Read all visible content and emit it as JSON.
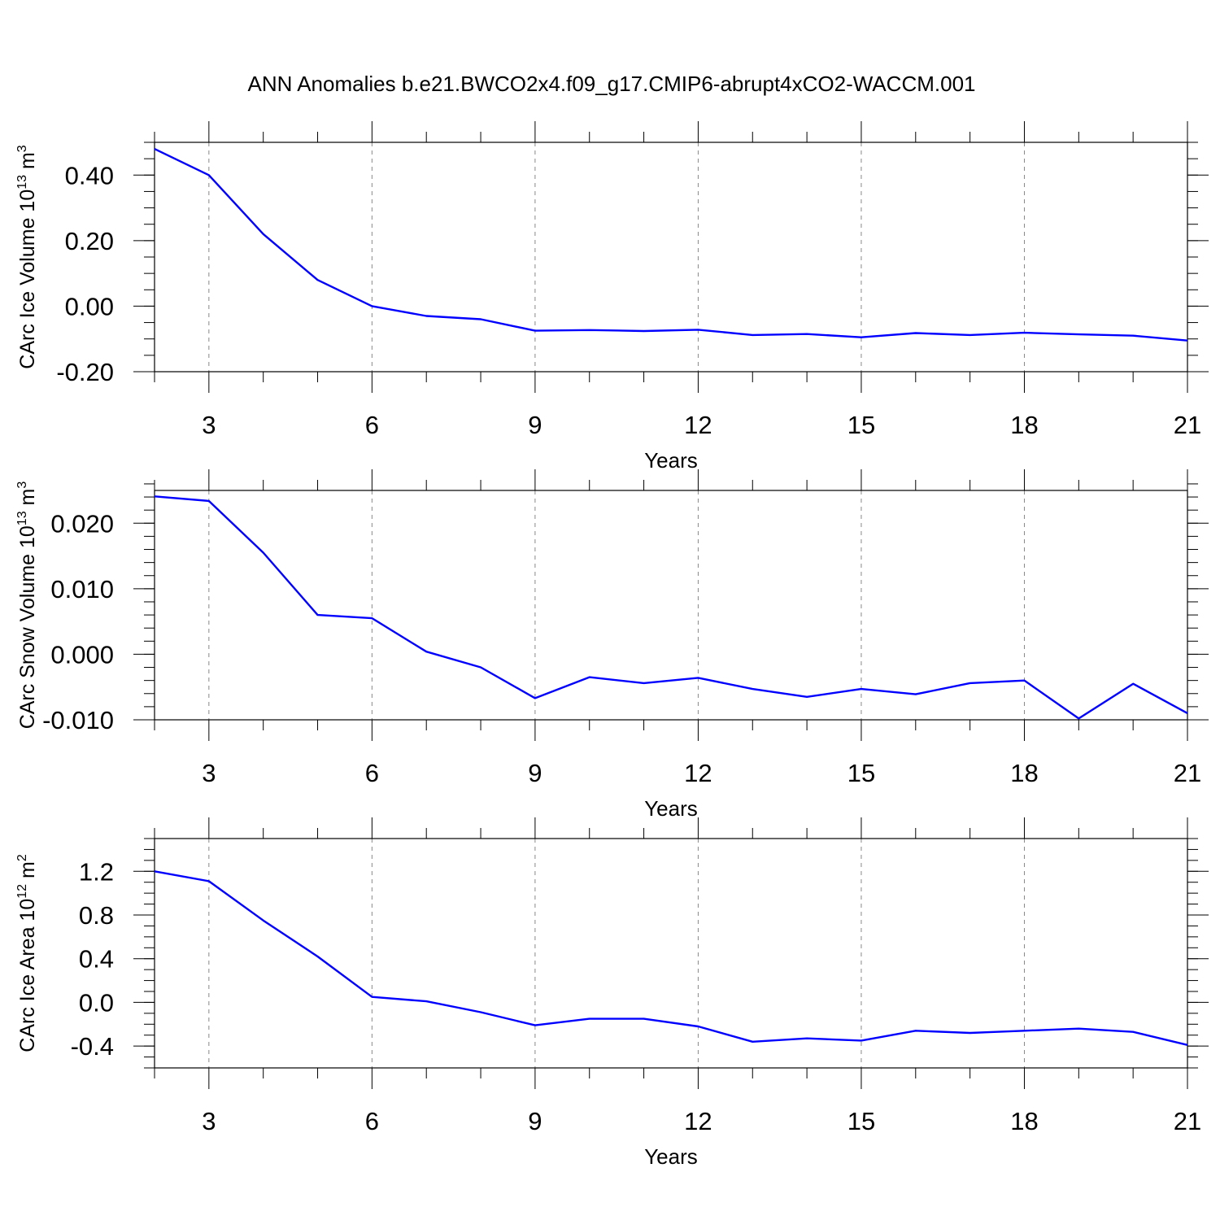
{
  "chart_data": {
    "title": "ANN Anomalies b.e21.BWCO2x4.f09_g17.CMIP6-abrupt4xCO2-WACCM.001",
    "line_color": "#0000ff",
    "panels": [
      {
        "type": "line",
        "ylabel": "CArc Ice Volume 10",
        "ylabel_sup": "13",
        "ylabel_unit": " m",
        "ylabel_unit_sup": "3",
        "xlabel": "Years",
        "xlim": [
          2,
          21
        ],
        "ylim": [
          -0.2,
          0.5
        ],
        "xticks": [
          3,
          6,
          9,
          12,
          15,
          18,
          21
        ],
        "xtick_labels": [
          "3",
          "6",
          "9",
          "12",
          "15",
          "18",
          "21"
        ],
        "yticks": [
          -0.2,
          0.0,
          0.2,
          0.4
        ],
        "ytick_labels": [
          "-0.20",
          "0.00",
          "0.20",
          "0.40"
        ],
        "y_minor_step": 0.05,
        "grid": "vertical dashed",
        "x": [
          2,
          3,
          4,
          5,
          6,
          7,
          8,
          9,
          10,
          11,
          12,
          13,
          14,
          15,
          16,
          17,
          18,
          19,
          20,
          21
        ],
        "y": [
          0.48,
          0.4,
          0.22,
          0.08,
          0.0,
          -0.03,
          -0.04,
          -0.075,
          -0.073,
          -0.076,
          -0.072,
          -0.088,
          -0.085,
          -0.095,
          -0.082,
          -0.088,
          -0.081,
          -0.086,
          -0.09,
          -0.105
        ]
      },
      {
        "type": "line",
        "ylabel": "CArc Snow Volume 10",
        "ylabel_sup": "13",
        "ylabel_unit": " m",
        "ylabel_unit_sup": "3",
        "xlabel": "Years",
        "xlim": [
          2,
          21
        ],
        "ylim": [
          -0.01,
          0.025
        ],
        "xticks": [
          3,
          6,
          9,
          12,
          15,
          18,
          21
        ],
        "xtick_labels": [
          "3",
          "6",
          "9",
          "12",
          "15",
          "18",
          "21"
        ],
        "yticks": [
          -0.01,
          0.0,
          0.01,
          0.02
        ],
        "ytick_labels": [
          "-0.010",
          "0.000",
          "0.010",
          "0.020"
        ],
        "y_minor_step": 0.002,
        "grid": "vertical dashed",
        "x": [
          2,
          3,
          4,
          5,
          6,
          7,
          8,
          9,
          10,
          11,
          12,
          13,
          14,
          15,
          16,
          17,
          18,
          19,
          20,
          21
        ],
        "y": [
          0.0241,
          0.0234,
          0.0155,
          0.006,
          0.0055,
          0.0004,
          -0.002,
          -0.0067,
          -0.0035,
          -0.0044,
          -0.0036,
          -0.0053,
          -0.0065,
          -0.0053,
          -0.0061,
          -0.0044,
          -0.004,
          -0.0098,
          -0.0045,
          -0.009
        ]
      },
      {
        "type": "line",
        "ylabel": "CArc Ice Area 10",
        "ylabel_sup": "12",
        "ylabel_unit": " m",
        "ylabel_unit_sup": "2",
        "xlabel": "Years",
        "xlim": [
          2,
          21
        ],
        "ylim": [
          -0.6,
          1.5
        ],
        "xticks": [
          3,
          6,
          9,
          12,
          15,
          18,
          21
        ],
        "xtick_labels": [
          "3",
          "6",
          "9",
          "12",
          "15",
          "18",
          "21"
        ],
        "yticks": [
          -0.4,
          0.0,
          0.4,
          0.8,
          1.2
        ],
        "ytick_labels": [
          "-0.4",
          "0.0",
          "0.4",
          "0.8",
          "1.2"
        ],
        "y_minor_step": 0.1,
        "grid": "vertical dashed",
        "x": [
          2,
          3,
          4,
          5,
          6,
          7,
          8,
          9,
          10,
          11,
          12,
          13,
          14,
          15,
          16,
          17,
          18,
          19,
          20,
          21
        ],
        "y": [
          1.2,
          1.11,
          0.75,
          0.42,
          0.05,
          0.01,
          -0.09,
          -0.21,
          -0.15,
          -0.15,
          -0.22,
          -0.36,
          -0.33,
          -0.35,
          -0.26,
          -0.28,
          -0.26,
          -0.24,
          -0.27,
          -0.39
        ]
      }
    ]
  }
}
